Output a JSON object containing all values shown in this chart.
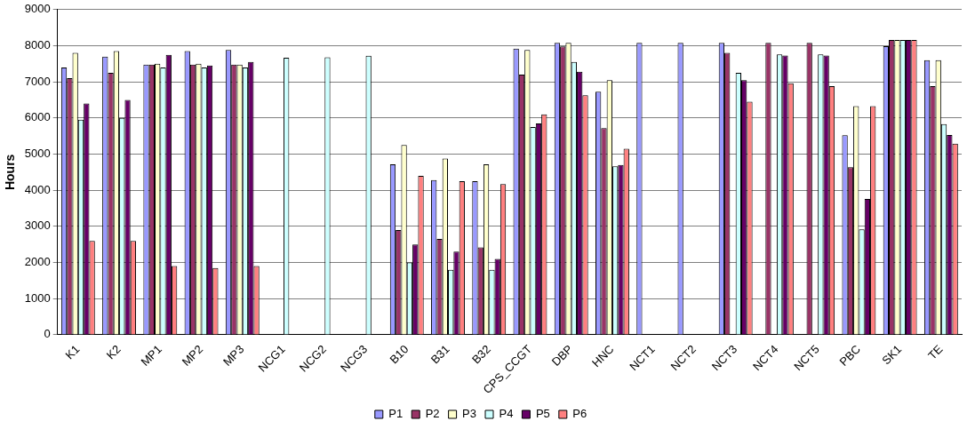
{
  "chart_data": {
    "type": "bar",
    "ylabel": "Hours",
    "categories": [
      "K1",
      "K2",
      "MP1",
      "MP2",
      "MP3",
      "NCG1",
      "NCG2",
      "NCG3",
      "B10",
      "B31",
      "B32",
      "CPS_CCGT",
      "DBP",
      "HNC",
      "NCT1",
      "NCT2",
      "NCT3",
      "NCT4",
      "NCT5",
      "PBC",
      "SK1",
      "TE"
    ],
    "series": [
      {
        "name": "P1",
        "color": "#9999ff",
        "values": [
          7400,
          7700,
          7480,
          7850,
          7880,
          null,
          null,
          null,
          4720,
          4280,
          4250,
          7920,
          8080,
          6730,
          8080,
          8080,
          8080,
          null,
          null,
          5520,
          7990,
          7600
        ]
      },
      {
        "name": "P2",
        "color": "#993366",
        "values": [
          7100,
          7250,
          7480,
          7480,
          7480,
          null,
          null,
          null,
          2900,
          2650,
          2420,
          7200,
          7980,
          5720,
          null,
          null,
          7800,
          8080,
          8080,
          4640,
          8160,
          6880
        ]
      },
      {
        "name": "P3",
        "color": "#ffffcc",
        "values": [
          7800,
          7850,
          7500,
          7500,
          7480,
          null,
          null,
          null,
          5250,
          4880,
          4720,
          7880,
          8080,
          7050,
          null,
          null,
          null,
          null,
          null,
          6330,
          8160,
          7600
        ]
      },
      {
        "name": "P4",
        "color": "#ccffff",
        "values": [
          5950,
          6000,
          7400,
          7400,
          7400,
          7670,
          7680,
          7720,
          2000,
          1800,
          1800,
          5750,
          7550,
          4660,
          null,
          null,
          7250,
          7760,
          7760,
          2920,
          8160,
          5830
        ]
      },
      {
        "name": "P5",
        "color": "#660066",
        "values": [
          6400,
          6500,
          7750,
          7450,
          7550,
          null,
          null,
          null,
          2500,
          2300,
          2100,
          5850,
          7280,
          4700,
          null,
          null,
          7050,
          7730,
          7730,
          3760,
          8160,
          5530
        ]
      },
      {
        "name": "P6",
        "color": "#ff8080",
        "values": [
          2600,
          2600,
          1900,
          1850,
          1900,
          null,
          null,
          null,
          4400,
          4250,
          4170,
          6100,
          6630,
          5150,
          null,
          null,
          6450,
          6960,
          6880,
          6330,
          8160,
          5290
        ]
      }
    ],
    "ylim": [
      0,
      9000
    ],
    "yticks": [
      0,
      1000,
      2000,
      3000,
      4000,
      5000,
      6000,
      7000,
      8000,
      9000
    ],
    "grid": "y",
    "legend": "bottom"
  }
}
